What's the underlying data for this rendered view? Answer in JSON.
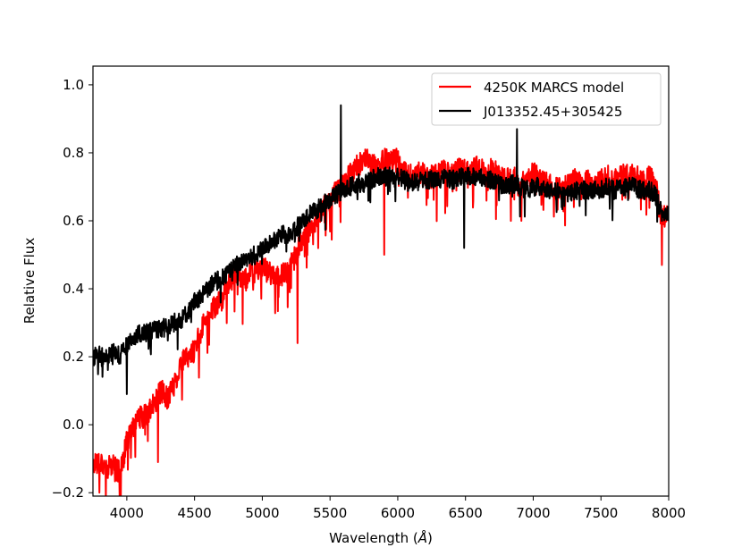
{
  "chart_data": {
    "type": "line",
    "xlabel": "Wavelength",
    "xlabel_unit": "Å",
    "ylabel": "Relative Flux",
    "xlim": [
      3750,
      8000
    ],
    "ylim": [
      -0.21,
      1.055
    ],
    "x_ticks": [
      4000,
      4500,
      5000,
      5500,
      6000,
      6500,
      7000,
      7500,
      8000
    ],
    "x_tick_labels": [
      "4000",
      "4500",
      "5000",
      "5500",
      "6000",
      "6500",
      "7000",
      "7500",
      "8000"
    ],
    "y_ticks": [
      -0.2,
      0.0,
      0.2,
      0.4,
      0.6,
      0.8,
      1.0
    ],
    "y_tick_labels": [
      "−0.2",
      "0.0",
      "0.2",
      "0.4",
      "0.6",
      "0.8",
      "1.0"
    ],
    "grid": false,
    "legend_position": "top-right",
    "series": [
      {
        "name": "4250K MARCS model",
        "color": "#ff0000",
        "x": [
          3750,
          3800,
          3850,
          3900,
          3950,
          4000,
          4050,
          4100,
          4150,
          4200,
          4250,
          4300,
          4350,
          4400,
          4450,
          4500,
          4550,
          4600,
          4650,
          4700,
          4750,
          4800,
          4850,
          4900,
          4950,
          5000,
          5050,
          5100,
          5150,
          5200,
          5250,
          5300,
          5350,
          5400,
          5450,
          5500,
          5550,
          5600,
          5650,
          5700,
          5750,
          5800,
          5850,
          5900,
          5950,
          6000,
          6050,
          6100,
          6150,
          6200,
          6250,
          6300,
          6350,
          6400,
          6450,
          6500,
          6550,
          6600,
          6650,
          6700,
          6750,
          6800,
          6850,
          6900,
          6950,
          7000,
          7050,
          7100,
          7150,
          7200,
          7250,
          7300,
          7350,
          7400,
          7450,
          7500,
          7550,
          7600,
          7650,
          7700,
          7750,
          7800,
          7850,
          7900,
          7950,
          8000
        ],
        "y": [
          -0.12,
          -0.1,
          -0.13,
          -0.12,
          -0.14,
          -0.05,
          0.0,
          0.02,
          0.03,
          0.06,
          0.1,
          0.08,
          0.12,
          0.18,
          0.2,
          0.22,
          0.28,
          0.32,
          0.35,
          0.37,
          0.42,
          0.44,
          0.43,
          0.44,
          0.45,
          0.46,
          0.45,
          0.43,
          0.44,
          0.46,
          0.5,
          0.55,
          0.58,
          0.6,
          0.65,
          0.66,
          0.7,
          0.7,
          0.74,
          0.76,
          0.78,
          0.77,
          0.76,
          0.78,
          0.77,
          0.78,
          0.74,
          0.73,
          0.74,
          0.74,
          0.73,
          0.74,
          0.75,
          0.74,
          0.75,
          0.75,
          0.75,
          0.76,
          0.74,
          0.75,
          0.73,
          0.72,
          0.73,
          0.7,
          0.72,
          0.74,
          0.72,
          0.71,
          0.7,
          0.69,
          0.7,
          0.72,
          0.71,
          0.72,
          0.71,
          0.72,
          0.73,
          0.72,
          0.73,
          0.74,
          0.73,
          0.72,
          0.73,
          0.71,
          0.6,
          0.64
        ]
      },
      {
        "name": "J013352.45+305425",
        "color": "#000000",
        "x": [
          3750,
          3800,
          3850,
          3900,
          3950,
          4000,
          4050,
          4100,
          4150,
          4200,
          4250,
          4300,
          4350,
          4400,
          4450,
          4500,
          4550,
          4600,
          4650,
          4700,
          4750,
          4800,
          4850,
          4900,
          4950,
          5000,
          5050,
          5100,
          5150,
          5200,
          5250,
          5300,
          5350,
          5400,
          5450,
          5500,
          5550,
          5600,
          5650,
          5700,
          5750,
          5800,
          5850,
          5900,
          5950,
          6000,
          6050,
          6100,
          6150,
          6200,
          6250,
          6300,
          6350,
          6400,
          6450,
          6500,
          6550,
          6600,
          6650,
          6700,
          6750,
          6800,
          6850,
          6900,
          6950,
          7000,
          7050,
          7100,
          7150,
          7200,
          7250,
          7300,
          7350,
          7400,
          7450,
          7500,
          7550,
          7600,
          7650,
          7700,
          7750,
          7800,
          7850,
          7900,
          7950,
          8000
        ],
        "y": [
          0.2,
          0.21,
          0.2,
          0.22,
          0.2,
          0.24,
          0.26,
          0.27,
          0.27,
          0.28,
          0.28,
          0.29,
          0.3,
          0.31,
          0.33,
          0.36,
          0.38,
          0.4,
          0.42,
          0.43,
          0.45,
          0.47,
          0.48,
          0.49,
          0.5,
          0.52,
          0.53,
          0.55,
          0.56,
          0.56,
          0.58,
          0.6,
          0.62,
          0.63,
          0.65,
          0.66,
          0.68,
          0.69,
          0.7,
          0.71,
          0.71,
          0.72,
          0.73,
          0.73,
          0.73,
          0.73,
          0.72,
          0.71,
          0.72,
          0.72,
          0.72,
          0.72,
          0.73,
          0.72,
          0.73,
          0.73,
          0.73,
          0.73,
          0.72,
          0.72,
          0.71,
          0.7,
          0.71,
          0.7,
          0.69,
          0.7,
          0.7,
          0.69,
          0.69,
          0.68,
          0.68,
          0.69,
          0.69,
          0.69,
          0.69,
          0.69,
          0.7,
          0.69,
          0.7,
          0.7,
          0.7,
          0.69,
          0.69,
          0.68,
          0.62,
          0.62
        ]
      }
    ],
    "annotations": [
      {
        "series": "J013352.45+305425",
        "x": 5580,
        "y": 0.94
      },
      {
        "series": "J013352.45+305425",
        "x": 6880,
        "y": 0.87
      },
      {
        "series": "J013352.45+305425",
        "x": 4000,
        "y": 0.09
      },
      {
        "series": "J013352.45+305425",
        "x": 6490,
        "y": 0.52
      },
      {
        "series": "4250K MARCS model",
        "x": 4230,
        "y": -0.11
      },
      {
        "series": "4250K MARCS model",
        "x": 5260,
        "y": 0.24
      },
      {
        "series": "4250K MARCS model",
        "x": 5900,
        "y": 0.5
      },
      {
        "series": "4250K MARCS model",
        "x": 7950,
        "y": 0.47
      }
    ]
  }
}
